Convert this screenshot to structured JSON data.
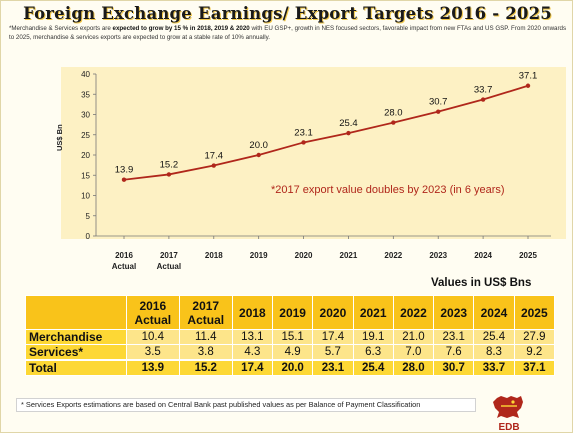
{
  "title": "Foreign Exchange Earnings/ Export Targets 2016 - 2025",
  "intro": {
    "part1": "*Merchandise & Services exports are ",
    "bold1": "expected to grow by 15 % in 2018, 2019 & 2020",
    "part2": " with EU GSP+, growth in NES focused sectors, favorable impact from new FTAs and US GSP. From 2020 onwards to 2025, merchandise & services exports are expected to grow at a stable rate of 10% annually."
  },
  "annotation": "*2017 export value doubles by 2023 (in 6 years)",
  "units_label": "Values in US$ Bns",
  "colors": {
    "line": "#b0271b",
    "panel": "#fdf1c4",
    "table": "#fdd835"
  },
  "chart_data": {
    "type": "line",
    "ylabel": "US$ Bn",
    "ylim": [
      0,
      40
    ],
    "yticks": [
      "0",
      "5",
      "10",
      "15",
      "20",
      "25",
      "30",
      "35",
      "40"
    ],
    "categories": [
      "2016 Actual",
      "2017 Actual",
      "2018",
      "2019",
      "2020",
      "2021",
      "2022",
      "2023",
      "2024",
      "2025"
    ],
    "category_lines": [
      [
        "2016",
        "Actual"
      ],
      [
        "2017",
        "Actual"
      ],
      [
        "2018"
      ],
      [
        "2019"
      ],
      [
        "2020"
      ],
      [
        "2021"
      ],
      [
        "2022"
      ],
      [
        "2023"
      ],
      [
        "2024"
      ],
      [
        "2025"
      ]
    ],
    "values": [
      13.9,
      15.2,
      17.4,
      20.0,
      23.1,
      25.4,
      28.0,
      30.7,
      33.7,
      37.1
    ],
    "data_labels": [
      "13.9",
      "15.2",
      "17.4",
      "20.0",
      "23.1",
      "25.4",
      "28.0",
      "30.7",
      "33.7",
      "37.1"
    ],
    "grid": false
  },
  "table": {
    "header": [
      [
        "2016",
        "Actual"
      ],
      [
        "2017",
        "Actual"
      ],
      [
        "2018"
      ],
      [
        "2019"
      ],
      [
        "2020"
      ],
      [
        "2021"
      ],
      [
        "2022"
      ],
      [
        "2023"
      ],
      [
        "2024"
      ],
      [
        "2025"
      ]
    ],
    "rows": [
      {
        "label": "Merchandise",
        "values": [
          "10.4",
          "11.4",
          "13.1",
          "15.1",
          "17.4",
          "19.1",
          "21.0",
          "23.1",
          "25.4",
          "27.9"
        ]
      },
      {
        "label": "Services*",
        "values": [
          "3.5",
          "3.8",
          "4.3",
          "4.9",
          "5.7",
          "6.3",
          "7.0",
          "7.6",
          "8.3",
          "9.2"
        ]
      },
      {
        "label": "Total",
        "values": [
          "13.9",
          "15.2",
          "17.4",
          "20.0",
          "23.1",
          "25.4",
          "28.0",
          "30.7",
          "33.7",
          "37.1"
        ]
      }
    ]
  },
  "footnote": "* Services Exports estimations are based on Central Bank past published values as per Balance of Payment Classification",
  "logo": {
    "icon": "lion-emblem-icon",
    "text": "EDB"
  }
}
